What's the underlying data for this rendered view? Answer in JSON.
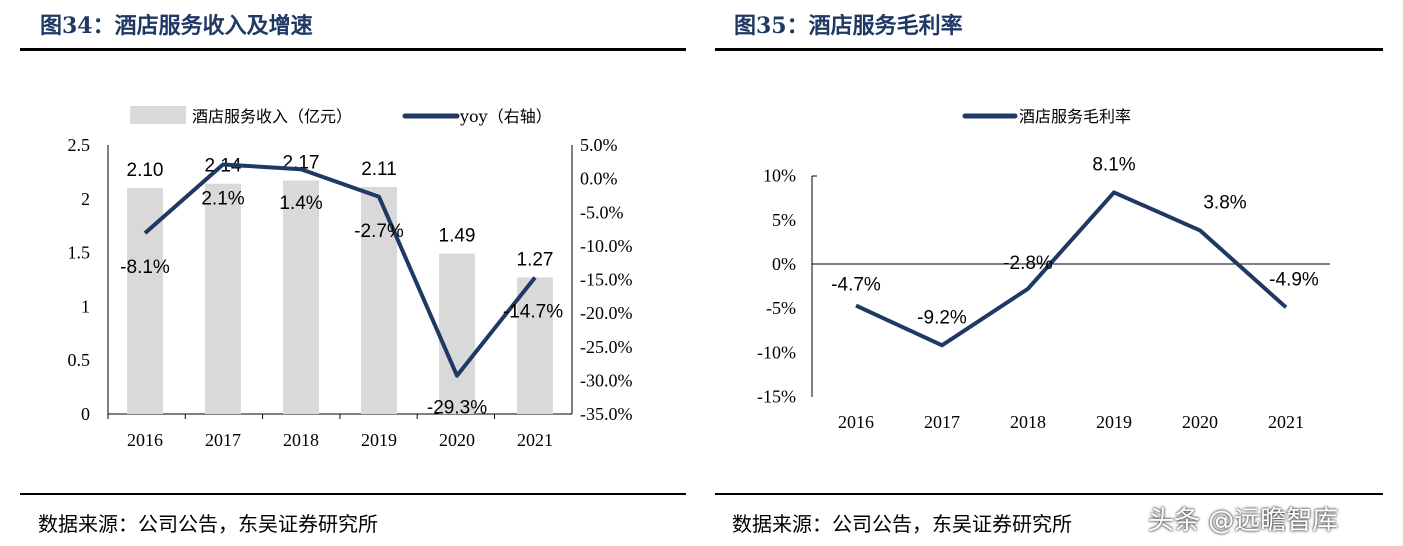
{
  "left": {
    "title": "图34：酒店服务收入及增速",
    "source": "数据来源：公司公告，东吴证券研究所"
  },
  "right": {
    "title": "图35：酒店服务毛利率",
    "source": "数据来源：公司公告，东吴证券研究所"
  },
  "watermark": "头条 @远瞻智库",
  "chart_data": [
    {
      "type": "bar+line",
      "categories": [
        "2016",
        "2017",
        "2018",
        "2019",
        "2020",
        "2021"
      ],
      "series": [
        {
          "name": "酒店服务收入（亿元）",
          "type": "bar",
          "axis": "left",
          "values": [
            2.1,
            2.14,
            2.17,
            2.11,
            1.49,
            1.27
          ],
          "labels": [
            "2.10",
            "2.14",
            "2.17",
            "2.11",
            "1.49",
            "1.27"
          ],
          "color": "#d9d9d9"
        },
        {
          "name": "yoy（右轴）",
          "type": "line",
          "axis": "right",
          "values": [
            -8.1,
            2.1,
            1.4,
            -2.7,
            -29.3,
            -14.7
          ],
          "labels": [
            "-8.1%",
            "2.1%",
            "1.4%",
            "-2.7%",
            "-29.3%",
            "-14.7%"
          ],
          "color": "#1f3864"
        }
      ],
      "ylim": [
        0,
        2.5
      ],
      "yticks": [
        "2.5",
        "2",
        "1.5",
        "1",
        "0.5",
        "0"
      ],
      "y2lim": [
        -35,
        5
      ],
      "y2ticks": [
        "5.0%",
        "0.0%",
        "-5.0%",
        "-10.0%",
        "-15.0%",
        "-20.0%",
        "-25.0%",
        "-30.0%",
        "-35.0%"
      ],
      "legend": "top",
      "grid": false
    },
    {
      "type": "line",
      "categories": [
        "2016",
        "2017",
        "2018",
        "2019",
        "2020",
        "2021"
      ],
      "series": [
        {
          "name": "酒店服务毛利率",
          "values": [
            -4.7,
            -9.2,
            -2.8,
            8.1,
            3.8,
            -4.9
          ],
          "labels": [
            "-4.7%",
            "-9.2%",
            "-2.8%",
            "8.1%",
            "3.8%",
            "-4.9%"
          ],
          "color": "#1f3864"
        }
      ],
      "ylim": [
        -15,
        10
      ],
      "yticks": [
        "10%",
        "5%",
        "0%",
        "-5%",
        "-10%",
        "-15%"
      ],
      "legend": "top",
      "grid": false
    }
  ]
}
